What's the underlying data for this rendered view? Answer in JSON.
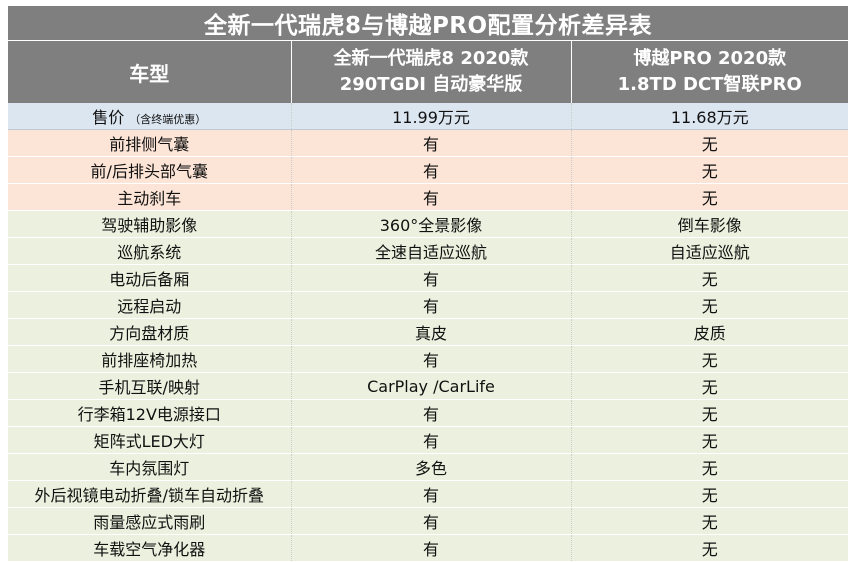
{
  "title": "全新一代瑞虎8与博越PRO配置分析差异表",
  "header": {
    "col1": "车型",
    "col2": [
      "全新一代瑞虎8 2020款",
      "290TGDI 自动豪华版"
    ],
    "col3": [
      "博越PRO 2020款",
      "1.8TD DCT智联PRO"
    ]
  },
  "colors": {
    "header": "#7f7f7f",
    "price_row": "#dce6f1",
    "safety_rows": "#fce4d6",
    "feature_rows": "#ebf1de"
  },
  "price_row": {
    "label": "售价",
    "note": "（含终端优惠）",
    "a": "11.99万元",
    "b": "11.68万元"
  },
  "rows": [
    {
      "group": "peach",
      "label": "前排侧气囊",
      "a": "有",
      "b": "无"
    },
    {
      "group": "peach",
      "label": "前/后排头部气囊",
      "a": "有",
      "b": "无"
    },
    {
      "group": "peach",
      "label": "主动刹车",
      "a": "有",
      "b": "无"
    },
    {
      "group": "green",
      "label": "驾驶辅助影像",
      "a": "360°全景影像",
      "b": "倒车影像"
    },
    {
      "group": "green",
      "label": "巡航系统",
      "a": "全速自适应巡航",
      "b": "自适应巡航"
    },
    {
      "group": "green",
      "label": "电动后备厢",
      "a": "有",
      "b": "无"
    },
    {
      "group": "green",
      "label": "远程启动",
      "a": "有",
      "b": "无"
    },
    {
      "group": "green",
      "label": "方向盘材质",
      "a": "真皮",
      "b": "皮质"
    },
    {
      "group": "green",
      "label": "前排座椅加热",
      "a": "有",
      "b": "无"
    },
    {
      "group": "green",
      "label": "手机互联/映射",
      "a": "CarPlay /CarLife",
      "b": "无"
    },
    {
      "group": "green",
      "label": "行李箱12V电源接口",
      "a": "有",
      "b": "无"
    },
    {
      "group": "green",
      "label": "矩阵式LED大灯",
      "a": "有",
      "b": "无"
    },
    {
      "group": "green",
      "label": "车内氛围灯",
      "a": "多色",
      "b": "无"
    },
    {
      "group": "green",
      "label": "外后视镜电动折叠/锁车自动折叠",
      "a": "有",
      "b": "无"
    },
    {
      "group": "green",
      "label": "雨量感应式雨刷",
      "a": "有",
      "b": "无"
    },
    {
      "group": "green",
      "label": "车载空气净化器",
      "a": "有",
      "b": "无"
    }
  ]
}
